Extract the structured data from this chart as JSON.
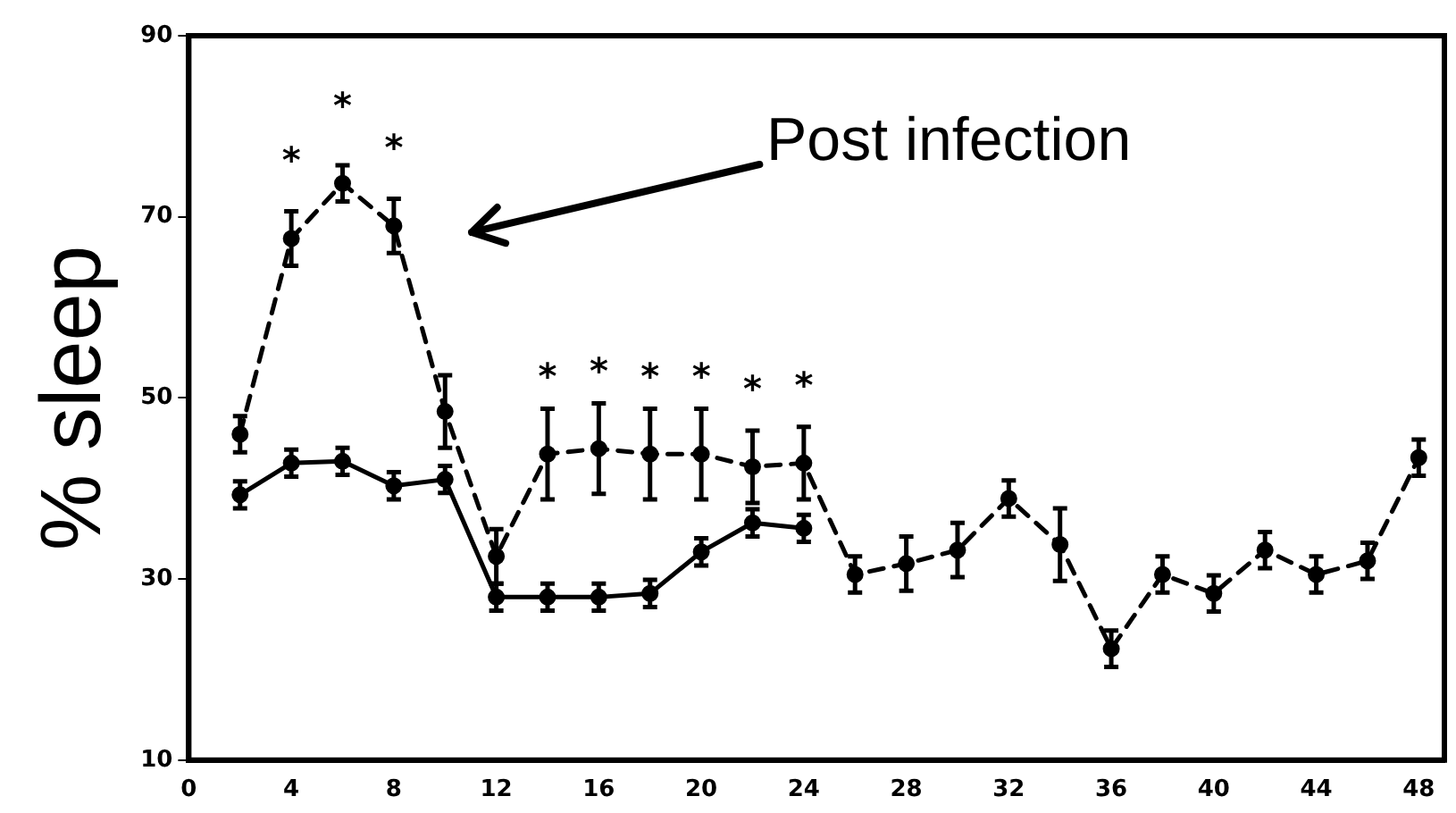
{
  "chart_data": {
    "type": "line",
    "ylabel": "% sleep",
    "xlim": [
      0,
      49
    ],
    "xticks": [
      0,
      4,
      8,
      12,
      16,
      20,
      24,
      28,
      32,
      36,
      40,
      44,
      48
    ],
    "ylim": [
      10,
      90
    ],
    "yticks": [
      10,
      30,
      50,
      70,
      90
    ],
    "grid": false,
    "legend": false,
    "marker": "circle",
    "series": [
      {
        "color": "#000000",
        "line_style": "solid",
        "x": [
          2,
          4,
          6,
          8,
          10,
          12,
          14,
          16,
          18,
          20,
          22,
          24
        ],
        "values": [
          39.3,
          42.8,
          43,
          40.3,
          41,
          28,
          28,
          28,
          28.4,
          33,
          36.2,
          35.6
        ],
        "errors": [
          1.5,
          1.5,
          1.5,
          1.5,
          1.5,
          1.5,
          1.5,
          1.5,
          1.5,
          1.5,
          1.5,
          1.5
        ]
      },
      {
        "color": "#000000",
        "line_style": "dashed",
        "x": [
          2,
          4,
          6,
          8,
          10,
          12,
          14,
          16,
          18,
          20,
          22,
          24,
          26,
          28,
          30,
          32,
          34,
          36,
          38,
          40,
          42,
          44,
          46,
          48
        ],
        "values": [
          46,
          67.6,
          73.7,
          69,
          48.5,
          32.5,
          43.8,
          44.4,
          43.8,
          43.8,
          42.4,
          42.8,
          30.5,
          31.7,
          33.2,
          38.9,
          33.8,
          22.3,
          30.5,
          28.4,
          33.2,
          30.5,
          32,
          43.4
        ],
        "errors": [
          2,
          3,
          2,
          3,
          4,
          3,
          5,
          5,
          5,
          5,
          4,
          4,
          2,
          3,
          3,
          2,
          4,
          2,
          2,
          2,
          2,
          2,
          2,
          2
        ]
      }
    ],
    "annotations": [
      "Post infection",
      {
        "text": "*",
        "x": 4,
        "y": 67.6
      },
      {
        "text": "*",
        "x": 6,
        "y": 73.7
      },
      {
        "text": "*",
        "x": 8,
        "y": 69
      },
      {
        "text": "*",
        "x": 14,
        "y": 43.8
      },
      {
        "text": "*",
        "x": 16,
        "y": 44.4
      },
      {
        "text": "*",
        "x": 18,
        "y": 43.8
      },
      {
        "text": "*",
        "x": 20,
        "y": 43.8
      },
      {
        "text": "*",
        "x": 22,
        "y": 42.4
      },
      {
        "text": "*",
        "x": 24,
        "y": 42.8
      }
    ]
  }
}
